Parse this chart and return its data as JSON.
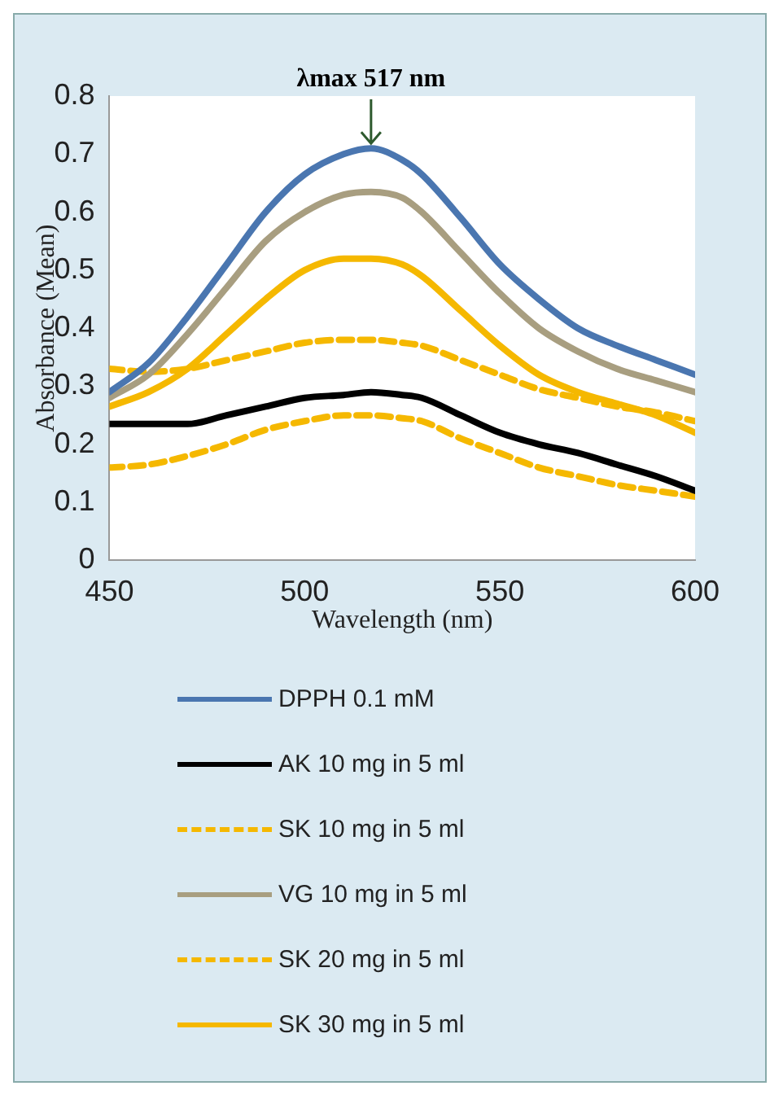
{
  "chart_data": {
    "type": "line",
    "xlabel": "Wavelength (nm)",
    "ylabel": "Absorbance (Mean)",
    "x": [
      450,
      460,
      470,
      480,
      490,
      500,
      510,
      517,
      525,
      530,
      540,
      550,
      560,
      570,
      580,
      590,
      600
    ],
    "series": [
      {
        "name": "DPPH 0.1 mM",
        "color": "#4a76b0",
        "values": [
          0.29,
          0.34,
          0.42,
          0.51,
          0.6,
          0.665,
          0.7,
          0.71,
          0.69,
          0.665,
          0.59,
          0.51,
          0.45,
          0.4,
          0.37,
          0.345,
          0.32
        ]
      },
      {
        "name": "AK 10 mg in 5 ml",
        "color": "#000000",
        "values": [
          0.235,
          0.235,
          0.235,
          0.25,
          0.265,
          0.28,
          0.285,
          0.29,
          0.285,
          0.28,
          0.25,
          0.22,
          0.2,
          0.185,
          0.165,
          0.145,
          0.12
        ]
      },
      {
        "name": "SK 10 mg in 5 ml",
        "color": "#f5b800",
        "line_style": "dashed",
        "values": [
          0.16,
          0.165,
          0.18,
          0.2,
          0.225,
          0.24,
          0.25,
          0.25,
          0.245,
          0.24,
          0.21,
          0.185,
          0.16,
          0.145,
          0.13,
          0.12,
          0.11
        ]
      },
      {
        "name": "VG 10 mg in 5 ml",
        "color": "#a89e80",
        "values": [
          0.28,
          0.32,
          0.39,
          0.47,
          0.55,
          0.6,
          0.63,
          0.635,
          0.625,
          0.6,
          0.53,
          0.46,
          0.4,
          0.36,
          0.33,
          0.31,
          0.29
        ]
      },
      {
        "name": "SK 20 mg in 5 ml",
        "color": "#f5b800",
        "line_style": "dashed",
        "values": [
          0.33,
          0.325,
          0.33,
          0.345,
          0.36,
          0.375,
          0.38,
          0.38,
          0.375,
          0.37,
          0.345,
          0.32,
          0.295,
          0.28,
          0.265,
          0.255,
          0.24
        ]
      },
      {
        "name": "SK 30 mg in 5 ml",
        "color": "#f5b800",
        "line_style": "solid",
        "values": [
          0.265,
          0.29,
          0.33,
          0.39,
          0.45,
          0.5,
          0.52,
          0.52,
          0.51,
          0.49,
          0.43,
          0.37,
          0.32,
          0.29,
          0.27,
          0.25,
          0.22
        ]
      }
    ],
    "xlim": [
      450,
      600
    ],
    "xticks": [
      450,
      500,
      550,
      600
    ],
    "ylim": [
      0,
      0.8
    ],
    "yticks": [
      0,
      0.1,
      0.2,
      0.3,
      0.4,
      0.5,
      0.6,
      0.7,
      0.8
    ],
    "annotations": [
      {
        "text": "λmax 517 nm",
        "x": 517,
        "y": 0.71
      }
    ],
    "grid": false,
    "legend": "bottom",
    "marker": "none",
    "line_style": "solid"
  }
}
